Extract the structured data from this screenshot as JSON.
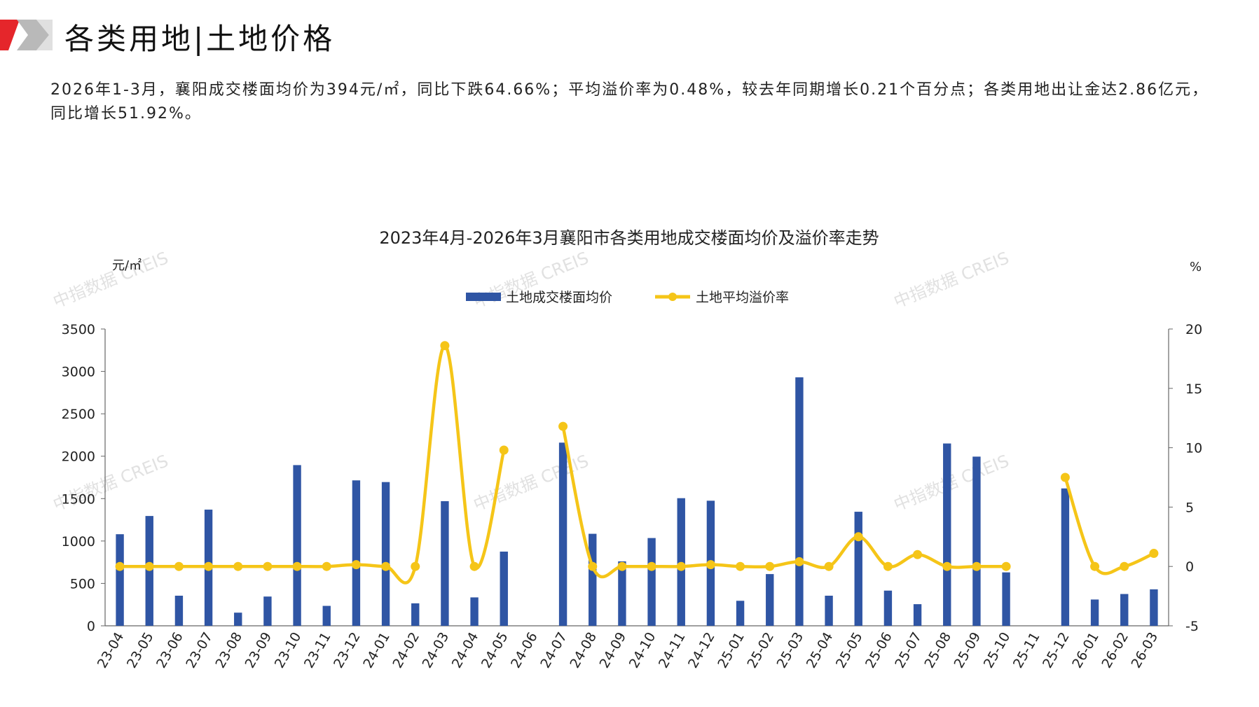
{
  "header": {
    "title": "各类用地|土地价格",
    "accent_color": "#e5262b"
  },
  "summary": {
    "text": "2026年1-3月，襄阳成交楼面均价为394元/㎡，同比下跌64.66%；平均溢价率为0.48%，较去年同期增长0.21个百分点；各类用地出让金达2.86亿元，同比增长51.92%。"
  },
  "watermark": "中指数据 CREIS",
  "chart_data": {
    "type": "bar",
    "title": "2023年4月-2026年3月襄阳市各类用地成交楼面均价及溢价率走势",
    "y_left_unit": "元/㎡",
    "y_right_unit": "%",
    "ylim_left": [
      0,
      3500
    ],
    "yticks_left": [
      "0",
      "500",
      "1000",
      "1500",
      "2000",
      "2500",
      "3000",
      "3500"
    ],
    "ylim_right": [
      -5,
      20
    ],
    "yticks_right": [
      "-5",
      "0",
      "5",
      "10",
      "15",
      "20"
    ],
    "legend_position": "top-center",
    "grid": false,
    "categories": [
      "23-04",
      "23-05",
      "23-06",
      "23-07",
      "23-08",
      "23-09",
      "23-10",
      "23-11",
      "23-12",
      "24-01",
      "24-02",
      "24-03",
      "24-04",
      "24-05",
      "24-06",
      "24-07",
      "24-08",
      "24-09",
      "24-10",
      "24-11",
      "24-12",
      "25-01",
      "25-02",
      "25-03",
      "25-04",
      "25-05",
      "25-06",
      "25-07",
      "25-08",
      "25-09",
      "25-10",
      "25-11",
      "25-12",
      "26-01",
      "26-02",
      "26-03"
    ],
    "series": [
      {
        "name": "土地成交楼面均价",
        "type": "bar",
        "axis": "left",
        "color": "#2f55a4",
        "values": [
          1080,
          1295,
          355,
          1370,
          155,
          345,
          1895,
          235,
          1715,
          1695,
          265,
          1470,
          335,
          875,
          null,
          2160,
          1085,
          760,
          1035,
          1505,
          1475,
          295,
          610,
          2930,
          355,
          1345,
          415,
          255,
          2150,
          1995,
          630,
          null,
          1620,
          310,
          375,
          430
        ]
      },
      {
        "name": "土地平均溢价率",
        "type": "line",
        "axis": "right",
        "color": "#f5c518",
        "values": [
          0,
          0,
          0,
          0,
          0,
          0,
          0,
          0,
          0.15,
          0,
          0,
          18.6,
          0,
          9.8,
          null,
          11.8,
          0,
          0,
          0,
          0,
          0.15,
          0,
          0,
          0.4,
          0,
          2.5,
          0,
          1.0,
          0,
          0,
          0,
          null,
          7.5,
          0,
          0,
          1.1
        ]
      }
    ]
  }
}
